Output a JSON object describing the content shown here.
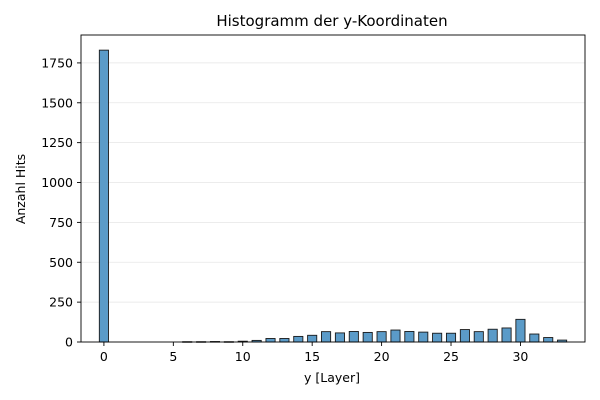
{
  "chart_data": {
    "type": "bar",
    "title": "Histogramm der y-Koordinaten",
    "xlabel": "y [Layer]",
    "ylabel": "Anzahl Hits",
    "xlim": [
      -1.65,
      34.65
    ],
    "ylim": [
      0,
      1925
    ],
    "xticks": [
      0,
      5,
      10,
      15,
      20,
      25,
      30
    ],
    "yticks": [
      0,
      250,
      500,
      750,
      1000,
      1250,
      1500,
      1750
    ],
    "grid": "horizontal",
    "bar_color": "#5b9bc8",
    "bin_width": 0.66,
    "bins": [
      {
        "x": 0,
        "count": 1830
      },
      {
        "x": 6,
        "count": 2
      },
      {
        "x": 7,
        "count": 2
      },
      {
        "x": 8,
        "count": 3
      },
      {
        "x": 9,
        "count": 2
      },
      {
        "x": 10,
        "count": 5
      },
      {
        "x": 11,
        "count": 10
      },
      {
        "x": 12,
        "count": 22
      },
      {
        "x": 13,
        "count": 22
      },
      {
        "x": 14,
        "count": 35
      },
      {
        "x": 15,
        "count": 42
      },
      {
        "x": 16,
        "count": 65
      },
      {
        "x": 17,
        "count": 57
      },
      {
        "x": 18,
        "count": 66
      },
      {
        "x": 19,
        "count": 60
      },
      {
        "x": 20,
        "count": 65
      },
      {
        "x": 21,
        "count": 75
      },
      {
        "x": 22,
        "count": 66
      },
      {
        "x": 23,
        "count": 62
      },
      {
        "x": 24,
        "count": 55
      },
      {
        "x": 25,
        "count": 55
      },
      {
        "x": 26,
        "count": 78
      },
      {
        "x": 27,
        "count": 65
      },
      {
        "x": 28,
        "count": 80
      },
      {
        "x": 29,
        "count": 88
      },
      {
        "x": 30,
        "count": 142
      },
      {
        "x": 31,
        "count": 50
      },
      {
        "x": 32,
        "count": 28
      },
      {
        "x": 33,
        "count": 12
      }
    ]
  }
}
